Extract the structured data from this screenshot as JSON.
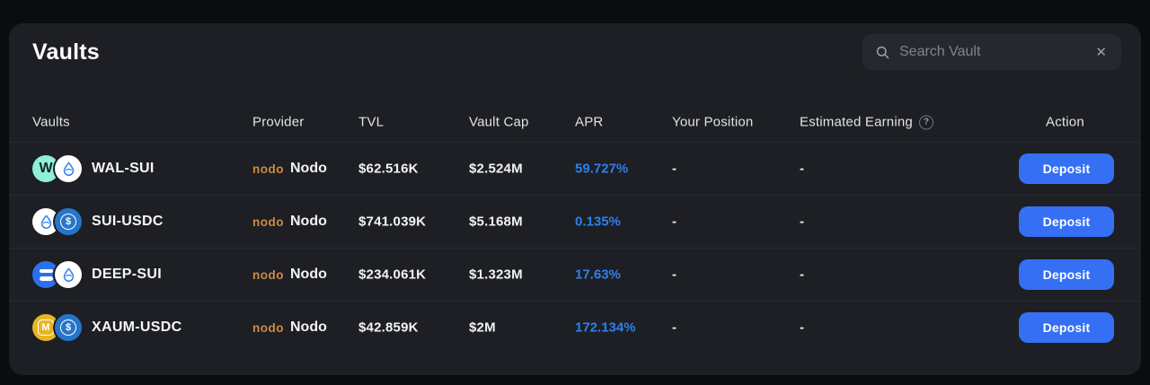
{
  "window": {
    "title": "Vaults"
  },
  "search": {
    "placeholder": "Search Vault"
  },
  "table": {
    "headers": [
      "Vaults",
      "Provider",
      "TVL",
      "Vault Cap",
      "APR",
      "Your Position",
      "Estimated Earning",
      "Action"
    ],
    "rows": [
      {
        "name": "WAL-SUI",
        "coins": [
          "WAL",
          "SUI"
        ],
        "provider_logo": "nodo",
        "provider": "Nodo",
        "tvl": "$62.516K",
        "vault_cap": "$2.524M",
        "apr": "59.727%",
        "your_position": "-",
        "estimated_earning": "-",
        "action": "Deposit"
      },
      {
        "name": "SUI-USDC",
        "coins": [
          "SUI",
          "USDC"
        ],
        "provider_logo": "nodo",
        "provider": "Nodo",
        "tvl": "$741.039K",
        "vault_cap": "$5.168M",
        "apr": "0.135%",
        "your_position": "-",
        "estimated_earning": "-",
        "action": "Deposit"
      },
      {
        "name": "DEEP-SUI",
        "coins": [
          "DEEP",
          "SUI"
        ],
        "provider_logo": "nodo",
        "provider": "Nodo",
        "tvl": "$234.061K",
        "vault_cap": "$1.323M",
        "apr": "17.63%",
        "your_position": "-",
        "estimated_earning": "-",
        "action": "Deposit"
      },
      {
        "name": "XAUM-USDC",
        "coins": [
          "XAUM",
          "USDC"
        ],
        "provider_logo": "nodo",
        "provider": "Nodo",
        "tvl": "$42.859K",
        "vault_cap": "$2M",
        "apr": "172.134%",
        "your_position": "-",
        "estimated_earning": "-",
        "action": "Deposit"
      }
    ]
  },
  "colors": {
    "page_bg": "#0b0c0e",
    "card_bg": "#1d1f24",
    "apr_blue": "#2f80ed",
    "button_blue": "#3570f4",
    "nodo_orange": "#cf8a42",
    "wal_mint": "#8df0db",
    "usdc_blue": "#2775ca",
    "deep_blue": "#2e6fee",
    "xaum_gold": "#e9b526"
  }
}
